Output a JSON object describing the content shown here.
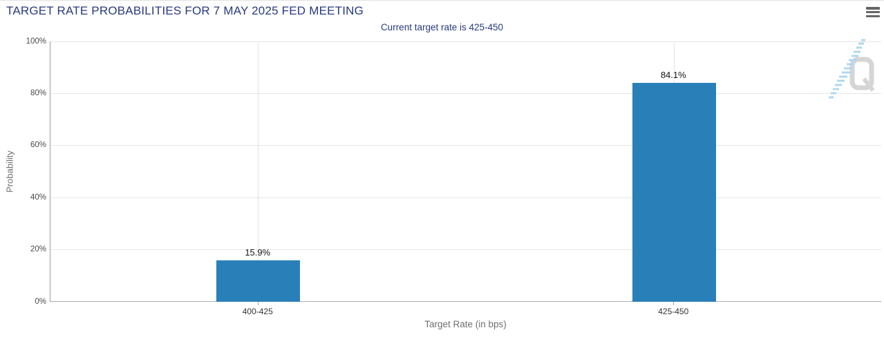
{
  "header": {
    "menu_icon": "hamburger-icon"
  },
  "watermark": {
    "letter": "Q",
    "name": "quikstrike-logo"
  },
  "colors": {
    "bar": "#2980b9",
    "title_navy": "#28397e",
    "grid": "#e6e6e6",
    "axis": "#9c9c9c",
    "menu_icon": "#666666",
    "watermark_gray": "#d5d5d5",
    "watermark_blue": "#aed8f0"
  },
  "chart_data": {
    "type": "bar",
    "title": "TARGET RATE PROBABILITIES FOR 7 MAY 2025 FED MEETING",
    "subtitle": "Current target rate is 425-450",
    "xlabel": "Target Rate (in bps)",
    "ylabel": "Probability",
    "categories": [
      "400-425",
      "425-450"
    ],
    "values": [
      15.9,
      84.1
    ],
    "value_labels": [
      "15.9%",
      "84.1%"
    ],
    "ylim": [
      0,
      100
    ],
    "yticks": [
      0,
      20,
      40,
      60,
      80,
      100
    ],
    "ytick_labels": [
      "0%",
      "20%",
      "40%",
      "60%",
      "80%",
      "100%"
    ],
    "grid": true,
    "legend_position": "none",
    "bar_color": "#2980b9"
  }
}
